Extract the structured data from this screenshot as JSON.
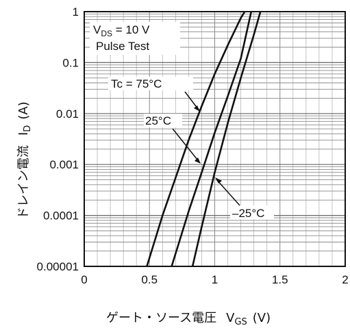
{
  "chart_data": {
    "type": "line",
    "xlabel": "ゲート・ソース電圧",
    "xlabel_symbol": "V",
    "xlabel_sub": "GS",
    "xlabel_unit": "(V)",
    "ylabel": "ドレイン電流",
    "ylabel_symbol": "I",
    "ylabel_sub": "D",
    "ylabel_unit": "(A)",
    "xlim": [
      0,
      2
    ],
    "ylim": [
      1e-05,
      1
    ],
    "y_scale": "log",
    "grid": true,
    "x_ticks": [
      0,
      0.5,
      1,
      1.5,
      2
    ],
    "x_tick_labels": [
      "0",
      "0.5",
      "1",
      "1.5",
      "2"
    ],
    "y_ticks": [
      1e-05,
      0.0001,
      0.001,
      0.01,
      0.1,
      1
    ],
    "y_tick_labels": [
      "0.00001",
      "0.0001",
      "0.001",
      "0.01",
      "0.1",
      "1"
    ],
    "conditions": {
      "vds_symbol": "V",
      "vds_sub": "DS",
      "vds_value": " = 10 V",
      "pulse": "Pulse Test"
    },
    "series": [
      {
        "name": "Tc = 75°C",
        "x": [
          0.48,
          0.6,
          0.7,
          0.8,
          0.9,
          1.0,
          1.1,
          1.2,
          1.23
        ],
        "y": [
          1e-05,
          0.0001,
          0.00055,
          0.003,
          0.014,
          0.06,
          0.22,
          0.75,
          1
        ]
      },
      {
        "name": "25°C",
        "x": [
          0.67,
          0.8,
          0.9,
          1.0,
          1.1,
          1.2,
          1.28
        ],
        "y": [
          1e-05,
          0.00012,
          0.0007,
          0.0042,
          0.022,
          0.12,
          1
        ]
      },
      {
        "name": "–25°C",
        "x": [
          0.83,
          0.9,
          1.0,
          1.1,
          1.2,
          1.3,
          1.35
        ],
        "y": [
          1e-05,
          6e-05,
          0.0007,
          0.0065,
          0.05,
          0.35,
          1
        ]
      }
    ]
  }
}
